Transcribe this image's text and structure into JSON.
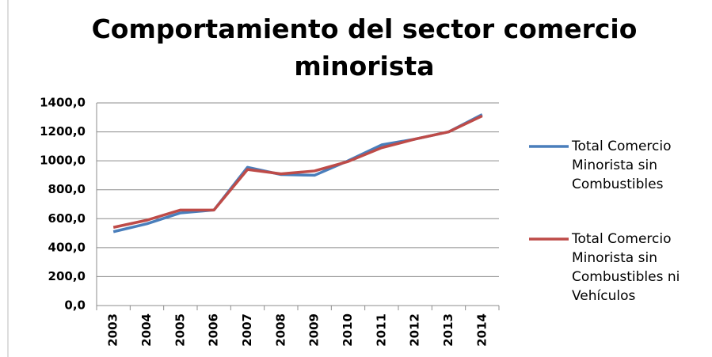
{
  "chart_data": {
    "type": "line",
    "title": "Comportamiento del sector comercio minorista",
    "categories": [
      "2003",
      "2004",
      "2005",
      "2006",
      "2007",
      "2008",
      "2009",
      "2010",
      "2011",
      "2012",
      "2013",
      "2014"
    ],
    "series": [
      {
        "name": "Total Comercio Minorista sin Combustibles",
        "color": "#4a7ebb",
        "values": [
          510,
          565,
          640,
          660,
          955,
          905,
          900,
          1000,
          1110,
          1150,
          1200,
          1320
        ]
      },
      {
        "name": "Total Comercio Minorista sin Combustibles ni Vehículos",
        "color": "#be4b48",
        "values": [
          540,
          590,
          660,
          660,
          940,
          910,
          930,
          995,
          1090,
          1150,
          1200,
          1310
        ]
      }
    ],
    "ylim": [
      0,
      1400
    ],
    "yticks": [
      {
        "value": 0,
        "label": "0,0"
      },
      {
        "value": 200,
        "label": "200,0"
      },
      {
        "value": 400,
        "label": "400,0"
      },
      {
        "value": 600,
        "label": "600,0"
      },
      {
        "value": 800,
        "label": "800,0"
      },
      {
        "value": 1000,
        "label": "1000,0"
      },
      {
        "value": 1200,
        "label": "1200,0"
      },
      {
        "value": 1400,
        "label": "1400,0"
      }
    ],
    "grid": true,
    "legend": "right"
  }
}
